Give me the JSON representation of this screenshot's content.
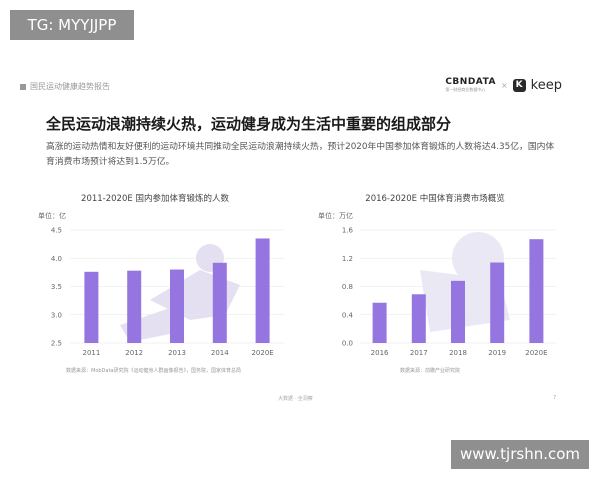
{
  "tag": "TG: MYYJJPP",
  "watermark": "www.tjrshn.com",
  "report_label": "国民运动健康趋势报告",
  "brand": {
    "cbx": "CBNDATA",
    "cbx_sub": "第一财经商业数据中心",
    "times": "×",
    "keep_mark": "K",
    "keep": "keep"
  },
  "headline": "全民运动浪潮持续火热，运动健身成为生活中重要的组成部分",
  "intro": "高涨的运动热情和友好便利的运动环境共同推动全民运动浪潮持续火热，预计2020年中国参加体育锻炼的人数将达4.35亿，国内体育消费市场预计将达到1.5万亿。",
  "footer": "大数据 · 全洞察",
  "page": "7",
  "colors": {
    "bar": "#9575e0",
    "bg_art": "#e4e0f2",
    "grid": "#e6e6e6"
  },
  "chart_data": [
    {
      "type": "bar",
      "title": "2011-2020E 国内参加体育锻炼的人数",
      "unit_label": "单位：亿",
      "categories": [
        "2011",
        "2012",
        "2013",
        "2014",
        "2020E"
      ],
      "values": [
        3.76,
        3.78,
        3.8,
        3.92,
        4.35
      ],
      "ylim": [
        2.5,
        4.5
      ],
      "yticks": [
        "2.5",
        "3.0",
        "3.5",
        "4.0",
        "4.5"
      ],
      "yvals": [
        2.5,
        3.0,
        3.5,
        4.0,
        4.5
      ],
      "source": "数据来源：MobData研究院《运动健身人群画像报告》，国务院，国家体育总局"
    },
    {
      "type": "bar",
      "title": "2016-2020E 中国体育消费市场概览",
      "unit_label": "单位：万亿",
      "categories": [
        "2016",
        "2017",
        "2018",
        "2019",
        "2020E"
      ],
      "values": [
        0.57,
        0.69,
        0.88,
        1.14,
        1.47
      ],
      "ylim": [
        0,
        1.6
      ],
      "yticks": [
        "0.0",
        "0.4",
        "0.8",
        "1.2",
        "1.6"
      ],
      "yvals": [
        0,
        0.4,
        0.8,
        1.2,
        1.6
      ],
      "source": "数据来源：前瞻产业研究院"
    }
  ]
}
